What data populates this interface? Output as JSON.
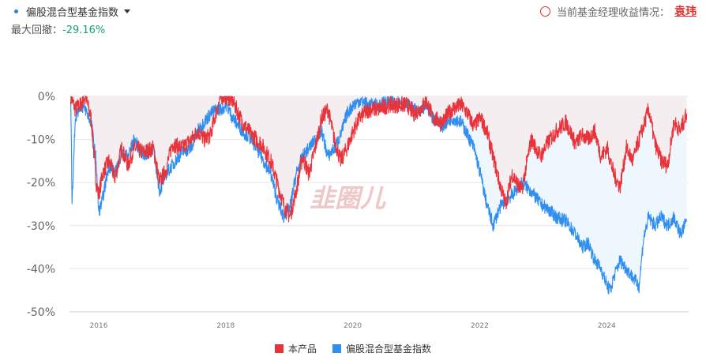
{
  "header": {
    "index_selector": "偏股混合型基金指数",
    "max_drawdown_label": "最大回撤：",
    "max_drawdown_value": "-29.16%",
    "manager_label": "当前基金经理收益情况：",
    "manager_name": "袁玮"
  },
  "watermark": "韭圈儿",
  "colors": {
    "product": "#e8333a",
    "index": "#2f8ef0",
    "product_fill": "#f5eef1",
    "index_fill": "#eef7fd",
    "drawdown_positive": "#1aa06b"
  },
  "chart_data": {
    "type": "area",
    "title": "",
    "xlabel": "",
    "ylabel": "",
    "x_ticks": [
      "2016",
      "2018",
      "2020",
      "2022",
      "2024"
    ],
    "xlim": [
      2015.58,
      2025.33
    ],
    "y_ticks": [
      "0%",
      "-10%",
      "-20%",
      "-30%",
      "-40%",
      "-50%"
    ],
    "ylim": [
      -50,
      0
    ],
    "grid": "horizontal",
    "legend_position": "bottom",
    "series": [
      {
        "name": "本产品",
        "x": [
          2015.6,
          2015.67,
          2015.75,
          2015.83,
          2015.92,
          2016.0,
          2016.04,
          2016.1,
          2016.2,
          2016.3,
          2016.4,
          2016.5,
          2016.6,
          2016.75,
          2016.9,
          2017.0,
          2017.1,
          2017.2,
          2017.35,
          2017.5,
          2017.6,
          2017.7,
          2017.8,
          2017.9,
          2017.97,
          2018.05,
          2018.15,
          2018.3,
          2018.45,
          2018.6,
          2018.75,
          2018.85,
          2018.95,
          2019.05,
          2019.15,
          2019.25,
          2019.35,
          2019.45,
          2019.55,
          2019.65,
          2019.75,
          2019.85,
          2019.95,
          2020.05,
          2020.15,
          2020.3,
          2020.45,
          2020.6,
          2020.75,
          2020.9,
          2021.0,
          2021.1,
          2021.2,
          2021.3,
          2021.45,
          2021.6,
          2021.75,
          2021.85,
          2021.95,
          2022.05,
          2022.15,
          2022.25,
          2022.35,
          2022.45,
          2022.55,
          2022.7,
          2022.85,
          2023.0,
          2023.1,
          2023.25,
          2023.4,
          2023.55,
          2023.65,
          2023.75,
          2023.85,
          2023.95,
          2024.05,
          2024.15,
          2024.25,
          2024.35,
          2024.45,
          2024.55,
          2024.62,
          2024.7,
          2024.8,
          2024.9,
          2025.0,
          2025.1,
          2025.2,
          2025.3
        ],
        "values": [
          0,
          -3,
          -2,
          0,
          -5,
          -20,
          -23,
          -18,
          -15,
          -19,
          -12,
          -16,
          -12,
          -13,
          -12,
          -20,
          -17,
          -11,
          -12,
          -10,
          -8,
          -10,
          -9,
          -3,
          0,
          0,
          -1,
          -6,
          -9,
          -11,
          -15,
          -20,
          -25,
          -28,
          -22,
          -14,
          -18,
          -12,
          -5,
          -3,
          -10,
          -15,
          -12,
          -8,
          -5,
          -3,
          -3,
          -2,
          -2,
          -2,
          -4,
          -3,
          -1,
          -5,
          -6,
          -3,
          -2,
          -4,
          -7,
          -5,
          -8,
          -14,
          -20,
          -25,
          -18,
          -22,
          -10,
          -14,
          -11,
          -8,
          -6,
          -11,
          -9,
          -10,
          -8,
          -14,
          -12,
          -18,
          -21,
          -12,
          -15,
          -10,
          -7,
          -3,
          -11,
          -15,
          -16,
          -6,
          -8,
          -4
        ]
      },
      {
        "name": "偏股混合型基金指数",
        "x": [
          2015.6,
          2015.62,
          2015.67,
          2015.75,
          2015.83,
          2015.92,
          2016.0,
          2016.04,
          2016.1,
          2016.2,
          2016.3,
          2016.4,
          2016.5,
          2016.6,
          2016.75,
          2016.9,
          2017.0,
          2017.1,
          2017.2,
          2017.35,
          2017.5,
          2017.6,
          2017.7,
          2017.8,
          2017.9,
          2017.97,
          2018.05,
          2018.15,
          2018.3,
          2018.45,
          2018.6,
          2018.75,
          2018.85,
          2018.95,
          2019.05,
          2019.15,
          2019.25,
          2019.35,
          2019.45,
          2019.55,
          2019.65,
          2019.75,
          2019.85,
          2019.95,
          2020.05,
          2020.15,
          2020.3,
          2020.45,
          2020.6,
          2020.75,
          2020.9,
          2021.0,
          2021.1,
          2021.2,
          2021.3,
          2021.45,
          2021.6,
          2021.75,
          2021.85,
          2021.95,
          2022.05,
          2022.15,
          2022.25,
          2022.35,
          2022.45,
          2022.55,
          2022.7,
          2022.85,
          2023.0,
          2023.1,
          2023.25,
          2023.4,
          2023.55,
          2023.65,
          2023.75,
          2023.85,
          2023.95,
          2024.05,
          2024.1,
          2024.15,
          2024.25,
          2024.35,
          2024.45,
          2024.55,
          2024.62,
          2024.7,
          2024.8,
          2024.9,
          2025.0,
          2025.1,
          2025.2,
          2025.3
        ],
        "values": [
          0,
          -25,
          -5,
          -2,
          -3,
          -6,
          -15,
          -27,
          -24,
          -16,
          -18,
          -13,
          -14,
          -10,
          -14,
          -12,
          -22,
          -18,
          -16,
          -13,
          -12,
          -8,
          -6,
          -4,
          -3,
          -3,
          -2,
          -5,
          -8,
          -10,
          -14,
          -18,
          -24,
          -28,
          -26,
          -18,
          -14,
          -12,
          -10,
          -8,
          -14,
          -12,
          -9,
          -4,
          -2,
          -1,
          -2,
          -2,
          -1,
          -1,
          -2,
          -3,
          -4,
          -2,
          -5,
          -7,
          -5,
          -6,
          -9,
          -12,
          -18,
          -25,
          -30,
          -26,
          -24,
          -23,
          -20,
          -22,
          -25,
          -26,
          -28,
          -29,
          -32,
          -35,
          -34,
          -38,
          -40,
          -44,
          -45,
          -42,
          -38,
          -40,
          -42,
          -44,
          -33,
          -28,
          -30,
          -28,
          -30,
          -28,
          -32,
          -29
        ]
      }
    ]
  }
}
